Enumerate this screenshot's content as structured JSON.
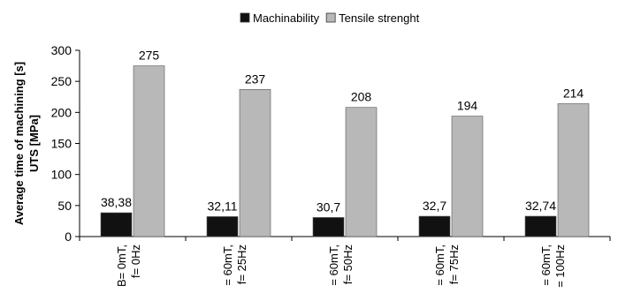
{
  "chart_data": {
    "type": "bar",
    "ylabel_lines": [
      "Average time of machining [s]",
      "UTS [MPa]"
    ],
    "ylim": [
      0,
      300
    ],
    "yticks": [
      0,
      50,
      100,
      150,
      200,
      250,
      300
    ],
    "legend": {
      "placement": "top-center"
    },
    "categories": [
      {
        "lines": [
          "B= 0mT,",
          "f= 0Hz"
        ]
      },
      {
        "lines": [
          "= 60mT,",
          "f= 25Hz"
        ]
      },
      {
        "lines": [
          "= 60mT,",
          "f= 50Hz"
        ]
      },
      {
        "lines": [
          "= 60mT,",
          "f= 75Hz"
        ]
      },
      {
        "lines": [
          "= 60mT,",
          "= 100Hz"
        ]
      }
    ],
    "series": [
      {
        "name": "Machinability",
        "color": "#111111",
        "values": [
          38.38,
          32.11,
          30.7,
          32.7,
          32.74
        ],
        "labels": [
          "38,38",
          "32,11",
          "30,7",
          "32,7",
          "32,74"
        ]
      },
      {
        "name": "Tensile strenght",
        "color": "#b8b8b8",
        "values": [
          275,
          237,
          208,
          194,
          214
        ],
        "labels": [
          "275",
          "237",
          "208",
          "194",
          "214"
        ]
      }
    ],
    "grid": false
  }
}
